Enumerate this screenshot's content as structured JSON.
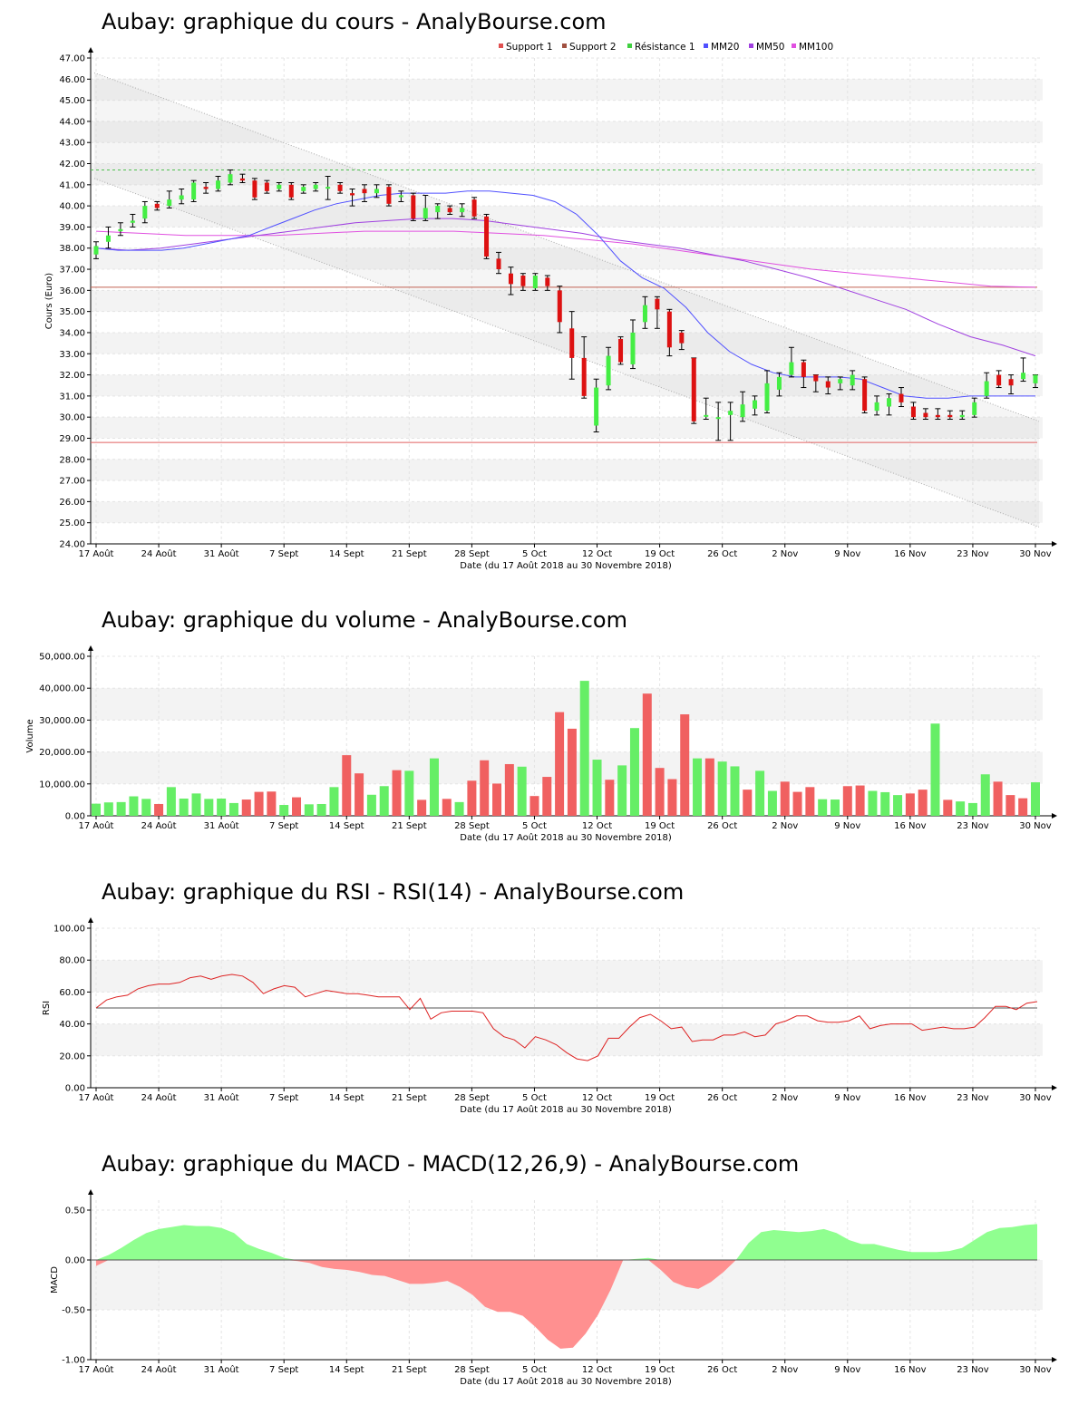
{
  "chart_data": [
    {
      "type": "candlestick",
      "title": "Aubay: graphique du cours - AnalyBourse.com",
      "xlabel": "Date (du 17 Août 2018 au 30 Novembre 2018)",
      "ylabel": "Cours (Euro)",
      "ylim": [
        24,
        47
      ],
      "yticks": [
        "24.00",
        "25.00",
        "26.00",
        "27.00",
        "28.00",
        "29.00",
        "30.00",
        "31.00",
        "32.00",
        "33.00",
        "34.00",
        "35.00",
        "36.00",
        "37.00",
        "38.00",
        "39.00",
        "40.00",
        "41.00",
        "42.00",
        "43.00",
        "44.00",
        "45.00",
        "46.00",
        "47.00"
      ],
      "xticks": [
        "17 Août",
        "24 Août",
        "31 Août",
        "7 Sept",
        "14 Sept",
        "21 Sept",
        "28 Sept",
        "5 Oct",
        "12 Oct",
        "19 Oct",
        "26 Oct",
        "2 Nov",
        "9 Nov",
        "16 Nov",
        "23 Nov",
        "30 Nov"
      ],
      "legend": [
        "Support 1",
        "Support 2",
        "Résistance 1",
        "MM20",
        "MM50",
        "MM100"
      ],
      "legend_colors": [
        "#e05050",
        "#a05040",
        "#40d040",
        "#5050ff",
        "#a040e0",
        "#e050e0"
      ],
      "legend_position": "top",
      "support1": 28.8,
      "support2": 36.15,
      "resistance1": 41.7,
      "channel_upper": [
        46.3,
        29.8
      ],
      "channel_lower": [
        41.3,
        24.8
      ],
      "candles": [
        {
          "o": 37.7,
          "c": 38.1,
          "h": 38.3,
          "l": 37.5
        },
        {
          "o": 38.3,
          "c": 38.6,
          "h": 39.0,
          "l": 38.0
        },
        {
          "o": 38.8,
          "c": 38.9,
          "h": 39.2,
          "l": 38.6
        },
        {
          "o": 39.2,
          "c": 39.3,
          "h": 39.6,
          "l": 39.0
        },
        {
          "o": 39.4,
          "c": 40.0,
          "h": 40.2,
          "l": 39.2
        },
        {
          "o": 40.1,
          "c": 39.9,
          "h": 40.2,
          "l": 39.8
        },
        {
          "o": 40.0,
          "c": 40.3,
          "h": 40.7,
          "l": 39.9
        },
        {
          "o": 40.3,
          "c": 40.5,
          "h": 40.8,
          "l": 40.1
        },
        {
          "o": 40.3,
          "c": 41.1,
          "h": 41.2,
          "l": 40.2
        },
        {
          "o": 40.9,
          "c": 40.8,
          "h": 41.1,
          "l": 40.6
        },
        {
          "o": 40.8,
          "c": 41.2,
          "h": 41.4,
          "l": 40.7
        },
        {
          "o": 41.1,
          "c": 41.5,
          "h": 41.7,
          "l": 41.0
        },
        {
          "o": 41.3,
          "c": 41.2,
          "h": 41.5,
          "l": 41.1
        },
        {
          "o": 41.2,
          "c": 40.4,
          "h": 41.3,
          "l": 40.3
        },
        {
          "o": 41.1,
          "c": 40.7,
          "h": 41.2,
          "l": 40.6
        },
        {
          "o": 40.8,
          "c": 41.0,
          "h": 41.1,
          "l": 40.7
        },
        {
          "o": 41.0,
          "c": 40.4,
          "h": 41.1,
          "l": 40.3
        },
        {
          "o": 40.7,
          "c": 40.9,
          "h": 41.0,
          "l": 40.6
        },
        {
          "o": 40.8,
          "c": 41.0,
          "h": 41.1,
          "l": 40.7
        },
        {
          "o": 40.9,
          "c": 40.9,
          "h": 41.4,
          "l": 40.3
        },
        {
          "o": 41.0,
          "c": 40.7,
          "h": 41.1,
          "l": 40.6
        },
        {
          "o": 40.6,
          "c": 40.5,
          "h": 40.8,
          "l": 40.0
        },
        {
          "o": 40.8,
          "c": 40.6,
          "h": 41.0,
          "l": 40.2
        },
        {
          "o": 40.6,
          "c": 40.8,
          "h": 41.0,
          "l": 40.4
        },
        {
          "o": 40.9,
          "c": 40.1,
          "h": 41.0,
          "l": 40.0
        },
        {
          "o": 40.5,
          "c": 40.5,
          "h": 40.7,
          "l": 40.2
        },
        {
          "o": 40.5,
          "c": 39.4,
          "h": 40.6,
          "l": 39.3
        },
        {
          "o": 39.4,
          "c": 39.9,
          "h": 40.5,
          "l": 39.3
        },
        {
          "o": 39.7,
          "c": 40.0,
          "h": 40.1,
          "l": 39.4
        },
        {
          "o": 39.9,
          "c": 39.7,
          "h": 40.0,
          "l": 39.6
        },
        {
          "o": 39.7,
          "c": 39.9,
          "h": 40.1,
          "l": 39.5
        },
        {
          "o": 40.3,
          "c": 39.5,
          "h": 40.4,
          "l": 39.4
        },
        {
          "o": 39.5,
          "c": 37.6,
          "h": 39.6,
          "l": 37.5
        },
        {
          "o": 37.5,
          "c": 37.0,
          "h": 37.8,
          "l": 36.8
        },
        {
          "o": 36.8,
          "c": 36.3,
          "h": 37.1,
          "l": 35.8
        },
        {
          "o": 36.7,
          "c": 36.2,
          "h": 36.8,
          "l": 36.0
        },
        {
          "o": 36.1,
          "c": 36.7,
          "h": 36.8,
          "l": 36.0
        },
        {
          "o": 36.6,
          "c": 36.2,
          "h": 36.7,
          "l": 36.0
        },
        {
          "o": 36.0,
          "c": 34.5,
          "h": 36.2,
          "l": 34.0
        },
        {
          "o": 34.2,
          "c": 32.8,
          "h": 35.0,
          "l": 31.8
        },
        {
          "o": 32.8,
          "c": 31.0,
          "h": 33.8,
          "l": 30.9
        },
        {
          "o": 29.6,
          "c": 31.4,
          "h": 31.8,
          "l": 29.3
        },
        {
          "o": 31.5,
          "c": 32.9,
          "h": 33.3,
          "l": 31.3
        },
        {
          "o": 33.7,
          "c": 32.6,
          "h": 33.8,
          "l": 32.5
        },
        {
          "o": 32.5,
          "c": 34.0,
          "h": 34.6,
          "l": 32.3
        },
        {
          "o": 34.5,
          "c": 35.3,
          "h": 35.7,
          "l": 34.2
        },
        {
          "o": 35.6,
          "c": 35.1,
          "h": 35.7,
          "l": 34.2
        },
        {
          "o": 35.0,
          "c": 33.3,
          "h": 35.1,
          "l": 32.9
        },
        {
          "o": 34.0,
          "c": 33.5,
          "h": 34.1,
          "l": 33.2
        },
        {
          "o": 32.8,
          "c": 29.8,
          "h": 32.8,
          "l": 29.7
        },
        {
          "o": 30.1,
          "c": 30.1,
          "h": 30.9,
          "l": 29.9
        },
        {
          "o": 30.0,
          "c": 30.0,
          "h": 30.7,
          "l": 28.9
        },
        {
          "o": 30.1,
          "c": 30.3,
          "h": 30.7,
          "l": 28.9
        },
        {
          "o": 30.0,
          "c": 30.6,
          "h": 31.2,
          "l": 29.8
        },
        {
          "o": 30.4,
          "c": 30.8,
          "h": 31.0,
          "l": 30.1
        },
        {
          "o": 30.3,
          "c": 31.6,
          "h": 32.2,
          "l": 30.2
        },
        {
          "o": 31.3,
          "c": 31.9,
          "h": 32.1,
          "l": 31.0
        },
        {
          "o": 32.0,
          "c": 32.6,
          "h": 33.3,
          "l": 31.9
        },
        {
          "o": 32.6,
          "c": 31.9,
          "h": 32.7,
          "l": 31.4
        },
        {
          "o": 32.0,
          "c": 31.7,
          "h": 32.0,
          "l": 31.2
        },
        {
          "o": 31.7,
          "c": 31.4,
          "h": 31.9,
          "l": 31.1
        },
        {
          "o": 31.6,
          "c": 31.8,
          "h": 31.9,
          "l": 31.3
        },
        {
          "o": 31.5,
          "c": 32.0,
          "h": 32.2,
          "l": 31.3
        },
        {
          "o": 31.8,
          "c": 30.3,
          "h": 31.9,
          "l": 30.2
        },
        {
          "o": 30.3,
          "c": 30.7,
          "h": 31.0,
          "l": 30.1
        },
        {
          "o": 30.5,
          "c": 30.9,
          "h": 31.1,
          "l": 30.1
        },
        {
          "o": 31.1,
          "c": 30.7,
          "h": 31.4,
          "l": 30.5
        },
        {
          "o": 30.5,
          "c": 30.0,
          "h": 30.7,
          "l": 29.9
        },
        {
          "o": 30.2,
          "c": 30.0,
          "h": 30.4,
          "l": 29.9
        },
        {
          "o": 30.1,
          "c": 30.0,
          "h": 30.4,
          "l": 29.9
        },
        {
          "o": 30.1,
          "c": 30.0,
          "h": 30.3,
          "l": 29.9
        },
        {
          "o": 30.0,
          "c": 30.1,
          "h": 30.3,
          "l": 29.9
        },
        {
          "o": 30.1,
          "c": 30.7,
          "h": 30.9,
          "l": 30.0
        },
        {
          "o": 31.0,
          "c": 31.7,
          "h": 32.1,
          "l": 30.9
        },
        {
          "o": 32.0,
          "c": 31.5,
          "h": 32.2,
          "l": 31.4
        },
        {
          "o": 31.8,
          "c": 31.5,
          "h": 32.0,
          "l": 31.1
        },
        {
          "o": 31.8,
          "c": 32.1,
          "h": 32.8,
          "l": 31.7
        },
        {
          "o": 31.6,
          "c": 32.0,
          "h": 32.0,
          "l": 31.4
        }
      ],
      "mm20": [
        38.0,
        37.9,
        37.9,
        37.9,
        38.0,
        38.2,
        38.4,
        38.6,
        39.0,
        39.4,
        39.8,
        40.1,
        40.3,
        40.5,
        40.6,
        40.6,
        40.6,
        40.7,
        40.7,
        40.6,
        40.5,
        40.2,
        39.6,
        38.6,
        37.4,
        36.6,
        36.1,
        35.2,
        34.0,
        33.1,
        32.5,
        32.1,
        31.9,
        31.9,
        31.9,
        31.8,
        31.4,
        31.0,
        30.9,
        30.9,
        31.0,
        31.0,
        31.0,
        31.0
      ],
      "mm50": [
        38.0,
        37.9,
        38.0,
        38.2,
        38.4,
        38.6,
        38.8,
        39.0,
        39.2,
        39.3,
        39.4,
        39.4,
        39.3,
        39.1,
        38.9,
        38.7,
        38.4,
        38.2,
        38.0,
        37.7,
        37.4,
        37.0,
        36.6,
        36.1,
        35.6,
        35.1,
        34.4,
        33.8,
        33.4,
        32.9
      ],
      "mm100": [
        38.8,
        38.7,
        38.6,
        38.6,
        38.6,
        38.7,
        38.8,
        38.8,
        38.8,
        38.7,
        38.6,
        38.4,
        38.2,
        37.9,
        37.6,
        37.3,
        37.0,
        36.8,
        36.6,
        36.4,
        36.2,
        36.15
      ]
    },
    {
      "type": "bar",
      "title": "Aubay: graphique du volume - AnalyBourse.com",
      "xlabel": "Date (du 17 Août 2018 au 30 Novembre 2018)",
      "ylabel": "Volume",
      "ylim": [
        0,
        50000
      ],
      "yticks": [
        "0.00",
        "10,000.00",
        "20,000.00",
        "30,000.00",
        "40,000.00",
        "50,000.00"
      ],
      "xticks": [
        "17 Août",
        "24 Août",
        "31 Août",
        "7 Sept",
        "14 Sept",
        "21 Sept",
        "28 Sept",
        "5 Oct",
        "12 Oct",
        "19 Oct",
        "26 Oct",
        "2 Nov",
        "9 Nov",
        "16 Nov",
        "23 Nov",
        "30 Nov"
      ],
      "volumes": [
        3800,
        4200,
        4300,
        6100,
        5300,
        3700,
        9000,
        5400,
        7000,
        5300,
        5400,
        4000,
        5100,
        7500,
        7600,
        3400,
        5800,
        3600,
        3700,
        9000,
        19000,
        13300,
        6600,
        9300,
        14300,
        14100,
        5000,
        18000,
        5300,
        4300,
        11000,
        17400,
        10100,
        16200,
        15400,
        6200,
        12200,
        32500,
        27300,
        42300,
        17600,
        11300,
        15800,
        27500,
        38300,
        15000,
        11500,
        31800,
        18000,
        18000,
        17000,
        15500,
        8200,
        14100,
        7800,
        10700,
        7500,
        9000,
        5200,
        5100,
        9300,
        9500,
        7800,
        7400,
        6500,
        7000,
        8200,
        28900,
        5000,
        4500,
        4000,
        13000,
        10700,
        6500,
        5500,
        10500
      ],
      "up": [
        1,
        1,
        1,
        1,
        1,
        0,
        1,
        1,
        1,
        1,
        1,
        1,
        0,
        0,
        0,
        1,
        0,
        1,
        1,
        1,
        0,
        0,
        1,
        1,
        0,
        1,
        0,
        1,
        0,
        1,
        0,
        0,
        0,
        0,
        1,
        0,
        0,
        0,
        0,
        1,
        1,
        0,
        1,
        1,
        0,
        0,
        0,
        0,
        1,
        0,
        1,
        1,
        0,
        1,
        1,
        0,
        0,
        0,
        1,
        1,
        0,
        0,
        1,
        1,
        1,
        0,
        0,
        1,
        0,
        1,
        1,
        1,
        0,
        0,
        0,
        1
      ]
    },
    {
      "type": "line",
      "title": "Aubay: graphique du RSI - RSI(14) - AnalyBourse.com",
      "xlabel": "Date (du 17 Août 2018 au 30 Novembre 2018)",
      "ylabel": "RSI",
      "ylim": [
        0,
        100
      ],
      "yticks": [
        "0.00",
        "20.00",
        "40.00",
        "60.00",
        "80.00",
        "100.00"
      ],
      "xticks": [
        "17 Août",
        "24 Août",
        "31 Août",
        "7 Sept",
        "14 Sept",
        "21 Sept",
        "28 Sept",
        "5 Oct",
        "12 Oct",
        "19 Oct",
        "26 Oct",
        "2 Nov",
        "9 Nov",
        "16 Nov",
        "23 Nov",
        "30 Nov"
      ],
      "reference": 50,
      "rsi": [
        50,
        55,
        57,
        58,
        62,
        64,
        65,
        65,
        66,
        69,
        70,
        68,
        70,
        71,
        70,
        66,
        59,
        62,
        64,
        63,
        57,
        59,
        61,
        60,
        59,
        59,
        58,
        57,
        57,
        57,
        49,
        56,
        43,
        47,
        48,
        48,
        48,
        47,
        37,
        32,
        30,
        25,
        32,
        30,
        27,
        22,
        18,
        17,
        20,
        31,
        31,
        38,
        44,
        46,
        42,
        37,
        38,
        29,
        30,
        30,
        33,
        33,
        35,
        32,
        33,
        40,
        42,
        45,
        45,
        42,
        41,
        41,
        42,
        45,
        37,
        39,
        40,
        40,
        40,
        36,
        37,
        38,
        37,
        37,
        38,
        44,
        51,
        51,
        49,
        53,
        54
      ]
    },
    {
      "type": "area",
      "title": "Aubay: graphique du MACD - MACD(12,26,9) - AnalyBourse.com",
      "xlabel": "Date (du 17 Août 2018 au 30 Novembre 2018)",
      "ylabel": "MACD",
      "ylim": [
        -1.0,
        0.6
      ],
      "yticks": [
        "-1.00",
        "-0.50",
        "0.00",
        "0.50"
      ],
      "xticks": [
        "17 Août",
        "24 Août",
        "31 Août",
        "7 Sept",
        "14 Sept",
        "21 Sept",
        "28 Sept",
        "5 Oct",
        "12 Oct",
        "19 Oct",
        "26 Oct",
        "2 Nov",
        "9 Nov",
        "16 Nov",
        "23 Nov",
        "30 Nov"
      ],
      "macd": [
        -0.06,
        0.05,
        0.12,
        0.2,
        0.27,
        0.31,
        0.33,
        0.35,
        0.34,
        0.34,
        0.32,
        0.27,
        0.16,
        0.11,
        0.07,
        0.02,
        -0.01,
        -0.03,
        -0.07,
        -0.09,
        -0.1,
        -0.12,
        -0.15,
        -0.16,
        -0.2,
        -0.24,
        -0.24,
        -0.23,
        -0.21,
        -0.27,
        -0.35,
        -0.47,
        -0.52,
        -0.52,
        -0.56,
        -0.67,
        -0.8,
        -0.89,
        -0.88,
        -0.74,
        -0.55,
        -0.3,
        0.0,
        0.01,
        0.02,
        -0.1,
        -0.22,
        -0.27,
        -0.29,
        -0.22,
        -0.12,
        0.0,
        0.17,
        0.28,
        0.3,
        0.29,
        0.28,
        0.29,
        0.31,
        0.27,
        0.2,
        0.16,
        0.16,
        0.13,
        0.1,
        0.08,
        0.08,
        0.08,
        0.09,
        0.12,
        0.2,
        0.28,
        0.32,
        0.33,
        0.35,
        0.36
      ],
      "positive_color": "#90ff90",
      "negative_color": "#ff9090"
    }
  ]
}
